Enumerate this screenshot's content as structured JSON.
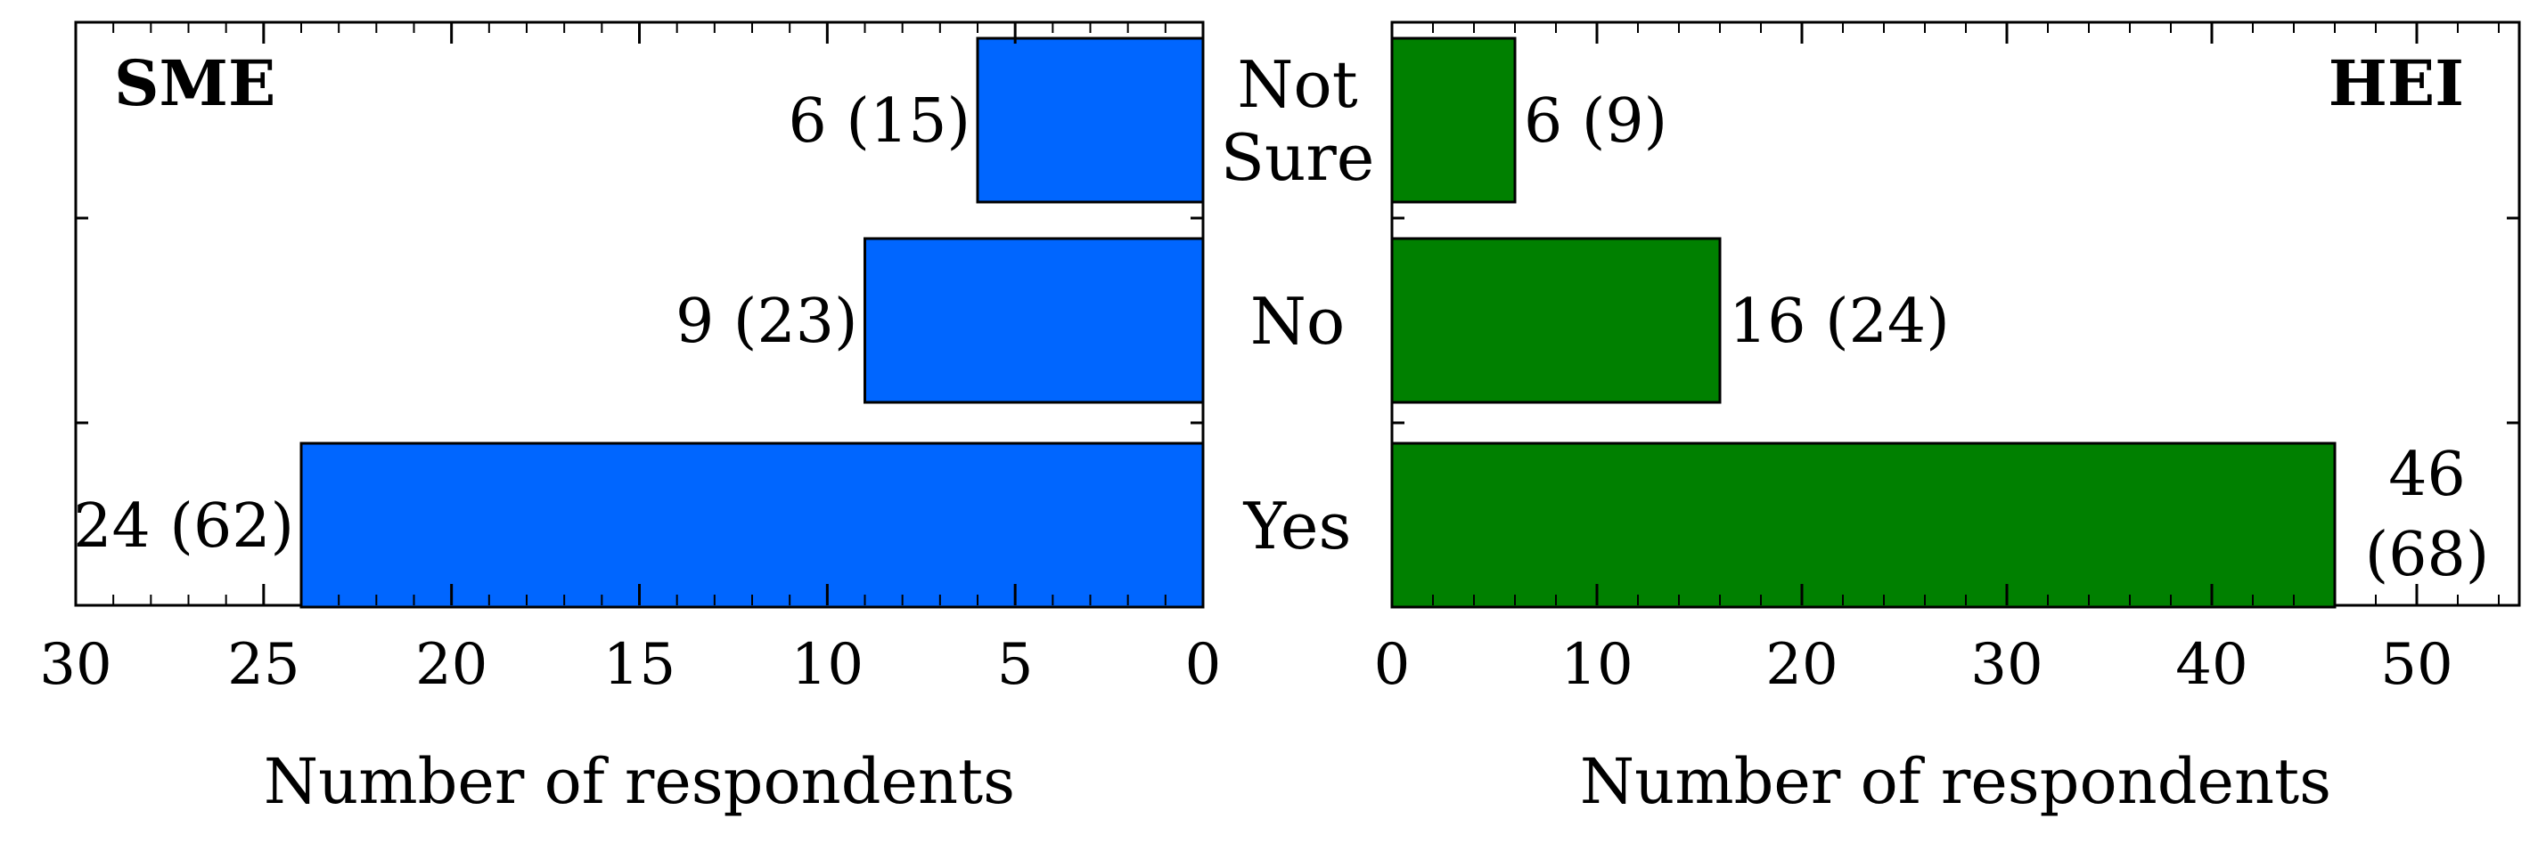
{
  "chart_data": [
    {
      "type": "bar",
      "orientation": "horizontal",
      "title": "SME",
      "xlabel": "Number of respondents",
      "xlim": [
        30,
        0
      ],
      "x_reversed": true,
      "xticks": [
        "30",
        "25",
        "20",
        "15",
        "10",
        "5",
        "0"
      ],
      "categories": [
        "Not Sure",
        "No",
        "Yes"
      ],
      "values": [
        6,
        9,
        24
      ],
      "value_labels": [
        "6 (15)",
        "9 (23)",
        "24 (62)"
      ],
      "color": "#0066ff"
    },
    {
      "type": "bar",
      "orientation": "horizontal",
      "title": "HEI",
      "xlabel": "Number of respondents",
      "xlim": [
        0,
        55
      ],
      "xticks": [
        "0",
        "10",
        "20",
        "30",
        "40",
        "50"
      ],
      "categories": [
        "Not Sure",
        "No",
        "Yes"
      ],
      "values": [
        6,
        16,
        46
      ],
      "value_labels": [
        "6 (9)",
        "16 (24)",
        "46 (68)"
      ],
      "color": "#008000"
    }
  ],
  "category_labels": [
    [
      "Not",
      "Sure"
    ],
    [
      "No"
    ],
    [
      "Yes"
    ]
  ]
}
